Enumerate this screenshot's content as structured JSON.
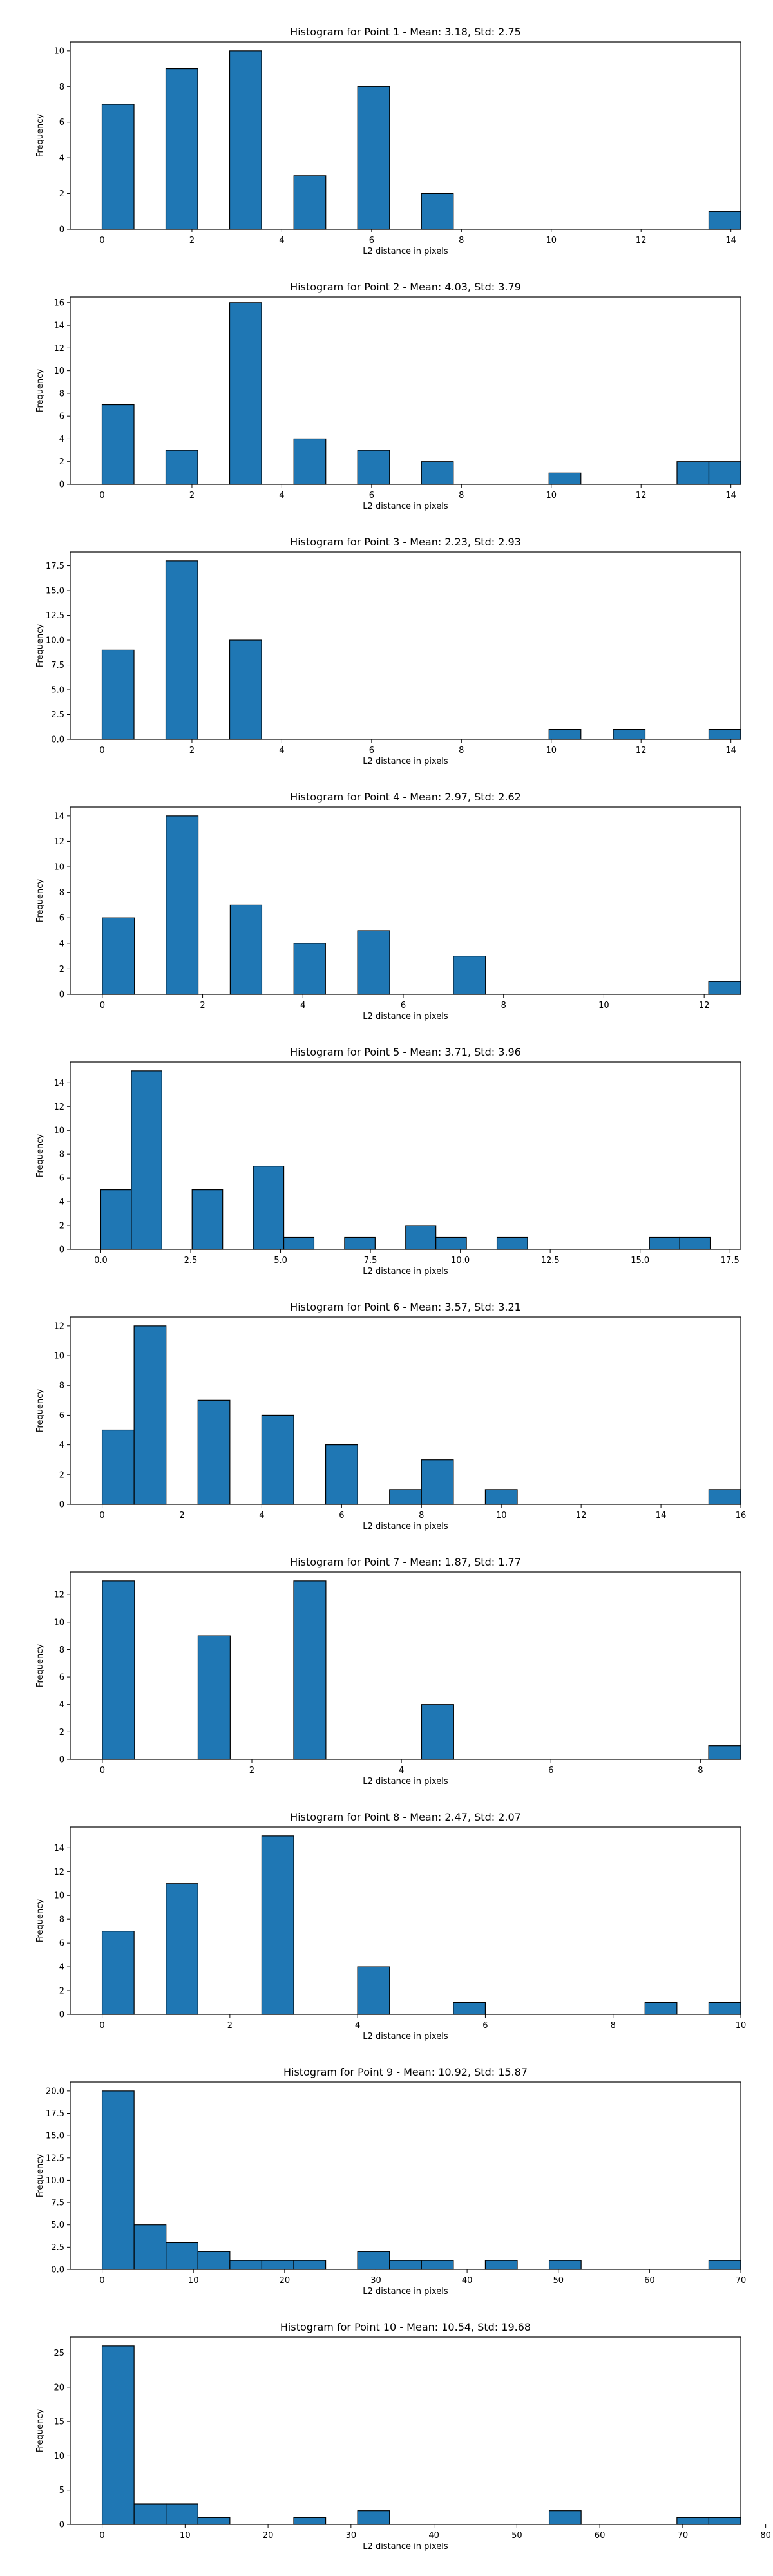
{
  "chart_data": [
    {
      "type": "bar",
      "title": "Histogram for Point 1 - Mean: 3.18, Std: 2.75",
      "xlabel": "L2 distance in pixels",
      "ylabel": "Frequency",
      "xlim": [
        -0.71,
        14.22
      ],
      "ylim": [
        0,
        10.5
      ],
      "xticks": [
        0,
        2,
        4,
        6,
        8,
        10,
        12,
        14
      ],
      "xtick_labels": [
        "0",
        "2",
        "4",
        "6",
        "8",
        "10",
        "12",
        "14"
      ],
      "yticks": [
        0,
        2,
        4,
        6,
        8,
        10
      ],
      "ytick_labels": [
        "0",
        "2",
        "4",
        "6",
        "8",
        "10"
      ],
      "bins": [
        {
          "x0": 0.0,
          "x1": 0.71,
          "count": 7
        },
        {
          "x0": 1.42,
          "x1": 2.13,
          "count": 9
        },
        {
          "x0": 2.84,
          "x1": 3.55,
          "count": 10
        },
        {
          "x0": 4.27,
          "x1": 4.98,
          "count": 3
        },
        {
          "x0": 5.69,
          "x1": 6.4,
          "count": 8
        },
        {
          "x0": 7.11,
          "x1": 7.82,
          "count": 2
        },
        {
          "x0": 13.51,
          "x1": 14.22,
          "count": 1
        }
      ]
    },
    {
      "type": "bar",
      "title": "Histogram for Point 2 - Mean: 4.03, Std: 3.79",
      "xlabel": "L2 distance in pixels",
      "ylabel": "Frequency",
      "xlim": [
        -0.71,
        14.22
      ],
      "ylim": [
        0,
        16.5
      ],
      "xticks": [
        0,
        2,
        4,
        6,
        8,
        10,
        12,
        14
      ],
      "xtick_labels": [
        "0",
        "2",
        "4",
        "6",
        "8",
        "10",
        "12",
        "14"
      ],
      "yticks": [
        0,
        2,
        4,
        6,
        8,
        10,
        12,
        14,
        16
      ],
      "ytick_labels": [
        "0",
        "2",
        "4",
        "6",
        "8",
        "10",
        "12",
        "14",
        "16"
      ],
      "bins": [
        {
          "x0": 0.0,
          "x1": 0.71,
          "count": 7
        },
        {
          "x0": 1.42,
          "x1": 2.13,
          "count": 3
        },
        {
          "x0": 2.84,
          "x1": 3.55,
          "count": 16
        },
        {
          "x0": 4.27,
          "x1": 4.98,
          "count": 4
        },
        {
          "x0": 5.69,
          "x1": 6.4,
          "count": 3
        },
        {
          "x0": 7.11,
          "x1": 7.82,
          "count": 2
        },
        {
          "x0": 9.95,
          "x1": 10.66,
          "count": 1
        },
        {
          "x0": 12.8,
          "x1": 13.51,
          "count": 2
        },
        {
          "x0": 13.51,
          "x1": 14.22,
          "count": 2
        }
      ]
    },
    {
      "type": "bar",
      "title": "Histogram for Point 3 - Mean: 2.23, Std: 2.93",
      "xlabel": "L2 distance in pixels",
      "ylabel": "Frequency",
      "xlim": [
        -0.71,
        14.22
      ],
      "ylim": [
        0,
        18.9
      ],
      "xticks": [
        0,
        2,
        4,
        6,
        8,
        10,
        12,
        14
      ],
      "xtick_labels": [
        "0",
        "2",
        "4",
        "6",
        "8",
        "10",
        "12",
        "14"
      ],
      "yticks": [
        0,
        2.5,
        5,
        7.5,
        10,
        12.5,
        15,
        17.5
      ],
      "ytick_labels": [
        "0.0",
        "2.5",
        "5.0",
        "7.5",
        "10.0",
        "12.5",
        "15.0",
        "17.5"
      ],
      "bins": [
        {
          "x0": 0.0,
          "x1": 0.71,
          "count": 9
        },
        {
          "x0": 1.42,
          "x1": 2.13,
          "count": 18
        },
        {
          "x0": 2.84,
          "x1": 3.55,
          "count": 10
        },
        {
          "x0": 9.95,
          "x1": 10.66,
          "count": 1
        },
        {
          "x0": 11.38,
          "x1": 12.09,
          "count": 1
        },
        {
          "x0": 13.51,
          "x1": 14.22,
          "count": 1
        }
      ]
    },
    {
      "type": "bar",
      "title": "Histogram for Point 4 - Mean: 2.97, Std: 2.62",
      "xlabel": "L2 distance in pixels",
      "ylabel": "Frequency",
      "xlim": [
        -0.64,
        12.73
      ],
      "ylim": [
        0,
        14.7
      ],
      "xticks": [
        0,
        2,
        4,
        6,
        8,
        10,
        12
      ],
      "xtick_labels": [
        "0",
        "2",
        "4",
        "6",
        "8",
        "10",
        "12"
      ],
      "yticks": [
        0,
        2,
        4,
        6,
        8,
        10,
        12,
        14
      ],
      "ytick_labels": [
        "0",
        "2",
        "4",
        "6",
        "8",
        "10",
        "12",
        "14"
      ],
      "bins": [
        {
          "x0": 0.0,
          "x1": 0.64,
          "count": 6
        },
        {
          "x0": 1.27,
          "x1": 1.91,
          "count": 14
        },
        {
          "x0": 2.55,
          "x1": 3.18,
          "count": 7
        },
        {
          "x0": 3.82,
          "x1": 4.45,
          "count": 4
        },
        {
          "x0": 5.09,
          "x1": 5.73,
          "count": 5
        },
        {
          "x0": 7.0,
          "x1": 7.64,
          "count": 3
        },
        {
          "x0": 12.09,
          "x1": 12.73,
          "count": 1
        }
      ]
    },
    {
      "type": "bar",
      "title": "Histogram for Point 5 - Mean: 3.71, Std: 3.96",
      "xlabel": "L2 distance in pixels",
      "ylabel": "Frequency",
      "xlim": [
        -0.85,
        17.8
      ],
      "ylim": [
        0,
        15.75
      ],
      "xticks": [
        0,
        2.5,
        5,
        7.5,
        10,
        12.5,
        15,
        17.5
      ],
      "xtick_labels": [
        "0.0",
        "2.5",
        "5.0",
        "7.5",
        "10.0",
        "12.5",
        "15.0",
        "17.5"
      ],
      "yticks": [
        0,
        2,
        4,
        6,
        8,
        10,
        12,
        14
      ],
      "ytick_labels": [
        "0",
        "2",
        "4",
        "6",
        "8",
        "10",
        "12",
        "14"
      ],
      "bins": [
        {
          "x0": 0.0,
          "x1": 0.85,
          "count": 5
        },
        {
          "x0": 0.85,
          "x1": 1.7,
          "count": 15
        },
        {
          "x0": 2.54,
          "x1": 3.39,
          "count": 5
        },
        {
          "x0": 4.24,
          "x1": 5.09,
          "count": 7
        },
        {
          "x0": 5.09,
          "x1": 5.93,
          "count": 1
        },
        {
          "x0": 6.78,
          "x1": 7.63,
          "count": 1
        },
        {
          "x0": 8.48,
          "x1": 9.32,
          "count": 2
        },
        {
          "x0": 9.32,
          "x1": 10.17,
          "count": 1
        },
        {
          "x0": 11.02,
          "x1": 11.87,
          "count": 1
        },
        {
          "x0": 15.26,
          "x1": 16.1,
          "count": 1
        },
        {
          "x0": 16.1,
          "x1": 16.95,
          "count": 1
        }
      ]
    },
    {
      "type": "bar",
      "title": "Histogram for Point 6 - Mean: 3.57, Std: 3.21",
      "xlabel": "L2 distance in pixels",
      "ylabel": "Frequency",
      "xlim": [
        -0.8,
        16.0
      ],
      "ylim": [
        0,
        12.6
      ],
      "xticks": [
        0,
        2,
        4,
        6,
        8,
        10,
        12,
        14,
        16
      ],
      "xtick_labels": [
        "0",
        "2",
        "4",
        "6",
        "8",
        "10",
        "12",
        "14",
        "16"
      ],
      "yticks": [
        0,
        2,
        4,
        6,
        8,
        10,
        12
      ],
      "ytick_labels": [
        "0",
        "2",
        "4",
        "6",
        "8",
        "10",
        "12"
      ],
      "bins": [
        {
          "x0": 0.0,
          "x1": 0.8,
          "count": 5
        },
        {
          "x0": 0.8,
          "x1": 1.6,
          "count": 12
        },
        {
          "x0": 2.4,
          "x1": 3.2,
          "count": 7
        },
        {
          "x0": 4.0,
          "x1": 4.8,
          "count": 6
        },
        {
          "x0": 5.6,
          "x1": 6.4,
          "count": 4
        },
        {
          "x0": 7.2,
          "x1": 8.0,
          "count": 1
        },
        {
          "x0": 8.0,
          "x1": 8.8,
          "count": 3
        },
        {
          "x0": 9.6,
          "x1": 10.4,
          "count": 1
        },
        {
          "x0": 15.2,
          "x1": 16.0,
          "count": 1
        }
      ]
    },
    {
      "type": "bar",
      "title": "Histogram for Point 7 - Mean: 1.87, Std: 1.77",
      "xlabel": "L2 distance in pixels",
      "ylabel": "Frequency",
      "xlim": [
        -0.43,
        8.54
      ],
      "ylim": [
        0,
        13.65
      ],
      "xticks": [
        0,
        2,
        4,
        6,
        8
      ],
      "xtick_labels": [
        "0",
        "2",
        "4",
        "6",
        "8"
      ],
      "yticks": [
        0,
        2,
        4,
        6,
        8,
        10,
        12
      ],
      "ytick_labels": [
        "0",
        "2",
        "4",
        "6",
        "8",
        "10",
        "12"
      ],
      "bins": [
        {
          "x0": 0.0,
          "x1": 0.43,
          "count": 13
        },
        {
          "x0": 1.28,
          "x1": 1.71,
          "count": 9
        },
        {
          "x0": 2.56,
          "x1": 2.99,
          "count": 13
        },
        {
          "x0": 4.27,
          "x1": 4.7,
          "count": 4
        },
        {
          "x0": 8.11,
          "x1": 8.54,
          "count": 1
        }
      ]
    },
    {
      "type": "bar",
      "title": "Histogram for Point 8 - Mean: 2.47, Std: 2.07",
      "xlabel": "L2 distance in pixels",
      "ylabel": "Frequency",
      "xlim": [
        -0.5,
        10.0
      ],
      "ylim": [
        0,
        15.75
      ],
      "xticks": [
        0,
        2,
        4,
        6,
        8,
        10
      ],
      "xtick_labels": [
        "0",
        "2",
        "4",
        "6",
        "8",
        "10"
      ],
      "yticks": [
        0,
        2,
        4,
        6,
        8,
        10,
        12,
        14
      ],
      "ytick_labels": [
        "0",
        "2",
        "4",
        "6",
        "8",
        "10",
        "12",
        "14"
      ],
      "bins": [
        {
          "x0": 0.0,
          "x1": 0.5,
          "count": 7
        },
        {
          "x0": 1.0,
          "x1": 1.5,
          "count": 11
        },
        {
          "x0": 2.5,
          "x1": 3.0,
          "count": 15
        },
        {
          "x0": 4.0,
          "x1": 4.5,
          "count": 4
        },
        {
          "x0": 5.5,
          "x1": 6.0,
          "count": 1
        },
        {
          "x0": 8.5,
          "x1": 9.0,
          "count": 1
        },
        {
          "x0": 9.5,
          "x1": 10.0,
          "count": 1
        }
      ]
    },
    {
      "type": "bar",
      "title": "Histogram for Point 9 - Mean: 10.92, Std: 15.87",
      "xlabel": "L2 distance in pixels",
      "ylabel": "Frequency",
      "xlim": [
        -3.5,
        70.0
      ],
      "ylim": [
        0,
        21.0
      ],
      "xticks": [
        0,
        10,
        20,
        30,
        40,
        50,
        60,
        70
      ],
      "xtick_labels": [
        "0",
        "10",
        "20",
        "30",
        "40",
        "50",
        "60",
        "70"
      ],
      "yticks": [
        0,
        2.5,
        5,
        7.5,
        10,
        12.5,
        15,
        17.5,
        20
      ],
      "ytick_labels": [
        "0.0",
        "2.5",
        "5.0",
        "7.5",
        "10.0",
        "12.5",
        "15.0",
        "17.5",
        "20.0"
      ],
      "bins": [
        {
          "x0": 0.0,
          "x1": 3.5,
          "count": 20
        },
        {
          "x0": 3.5,
          "x1": 7.0,
          "count": 5
        },
        {
          "x0": 7.0,
          "x1": 10.5,
          "count": 3
        },
        {
          "x0": 10.5,
          "x1": 14.0,
          "count": 2
        },
        {
          "x0": 14.0,
          "x1": 17.5,
          "count": 1
        },
        {
          "x0": 17.5,
          "x1": 21.0,
          "count": 1
        },
        {
          "x0": 21.0,
          "x1": 24.5,
          "count": 1
        },
        {
          "x0": 28.0,
          "x1": 31.5,
          "count": 2
        },
        {
          "x0": 31.5,
          "x1": 35.0,
          "count": 1
        },
        {
          "x0": 35.0,
          "x1": 38.5,
          "count": 1
        },
        {
          "x0": 42.0,
          "x1": 45.5,
          "count": 1
        },
        {
          "x0": 49.0,
          "x1": 52.5,
          "count": 1
        },
        {
          "x0": 66.5,
          "x1": 70.0,
          "count": 1
        }
      ]
    },
    {
      "type": "bar",
      "title": "Histogram for Point 10 - Mean: 10.54, Std: 19.68",
      "xlabel": "L2 distance in pixels",
      "ylabel": "Frequency",
      "xlim": [
        -3.85,
        77.0
      ],
      "ylim": [
        0,
        27.3
      ],
      "xticks": [
        0,
        10,
        20,
        30,
        40,
        50,
        60,
        70,
        80
      ],
      "xtick_labels": [
        "0",
        "10",
        "20",
        "30",
        "40",
        "50",
        "60",
        "70",
        "80"
      ],
      "yticks": [
        0,
        5,
        10,
        15,
        20,
        25
      ],
      "ytick_labels": [
        "0",
        "5",
        "10",
        "15",
        "20",
        "25"
      ],
      "bins": [
        {
          "x0": 0.0,
          "x1": 3.85,
          "count": 26
        },
        {
          "x0": 3.85,
          "x1": 7.7,
          "count": 3
        },
        {
          "x0": 7.7,
          "x1": 11.55,
          "count": 3
        },
        {
          "x0": 11.55,
          "x1": 15.4,
          "count": 1
        },
        {
          "x0": 23.1,
          "x1": 26.95,
          "count": 1
        },
        {
          "x0": 30.8,
          "x1": 34.65,
          "count": 2
        },
        {
          "x0": 53.9,
          "x1": 57.75,
          "count": 2
        },
        {
          "x0": 69.3,
          "x1": 73.15,
          "count": 1
        },
        {
          "x0": 73.15,
          "x1": 77.0,
          "count": 1
        }
      ]
    }
  ],
  "style": {
    "bar_fill": "#1f77b4",
    "bar_edge": "#000000",
    "axis_color": "#000000",
    "text_color": "#000000",
    "background": "#ffffff"
  }
}
